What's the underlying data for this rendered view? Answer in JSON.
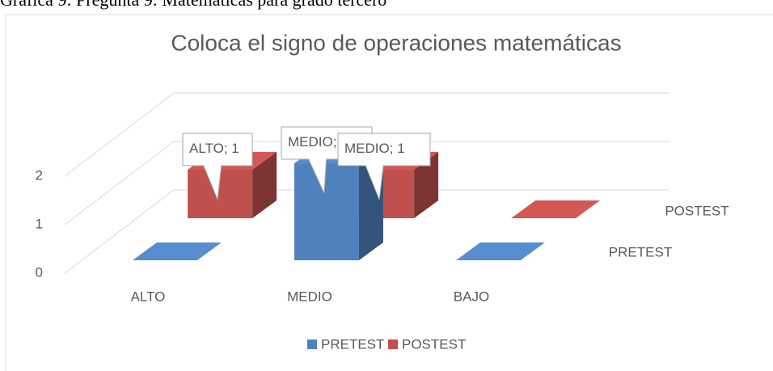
{
  "caption": "Gráfica 9: Pregunta 9: Matemáticas para grado tercero",
  "chart_data": {
    "type": "bar3d",
    "title": "Coloca el signo de operaciones matemáticas",
    "categories": [
      "ALTO",
      "MEDIO",
      "BAJO"
    ],
    "series": [
      {
        "name": "PRETEST",
        "color": "#4f81bd",
        "values": [
          0,
          2,
          0
        ]
      },
      {
        "name": "POSTEST",
        "color": "#c0504d",
        "values": [
          1,
          1,
          0
        ]
      }
    ],
    "label_separator": "; ",
    "ylim": [
      0,
      2
    ],
    "yticks": [
      0,
      1,
      2
    ],
    "grid": true,
    "legend": "bottom"
  }
}
